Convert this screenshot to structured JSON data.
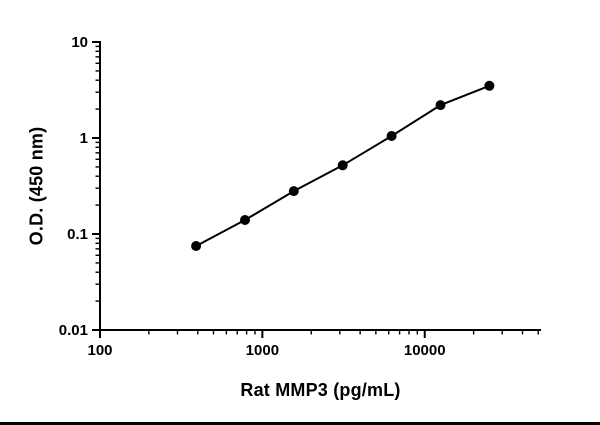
{
  "chart_data": {
    "type": "scatter",
    "title": "",
    "xlabel": "Rat MMP3 (pg/mL)",
    "ylabel": "O.D. (450 nm)",
    "x_scale": "log",
    "y_scale": "log",
    "xlim": [
      100,
      52000
    ],
    "ylim": [
      0.01,
      10
    ],
    "x_major_ticks": [
      100,
      1000,
      10000
    ],
    "x_tick_labels": [
      "100",
      "1000",
      "10000"
    ],
    "x_minor_max": 50000,
    "y_major_ticks": [
      0.01,
      0.1,
      1,
      10
    ],
    "y_tick_labels": [
      "0.01",
      "0.1",
      "1",
      "10"
    ],
    "grid": false,
    "legend": false,
    "series": [
      {
        "name": "standard-curve",
        "marker": "filled-circle",
        "color": "#000000",
        "x": [
          390.6,
          781.3,
          1562.5,
          3125,
          6250,
          12500,
          25000
        ],
        "y": [
          0.075,
          0.14,
          0.28,
          0.52,
          1.05,
          2.2,
          3.5
        ]
      }
    ]
  },
  "colors": {
    "axis": "#000000",
    "marker": "#000000",
    "line": "#000000",
    "background": "#ffffff"
  }
}
